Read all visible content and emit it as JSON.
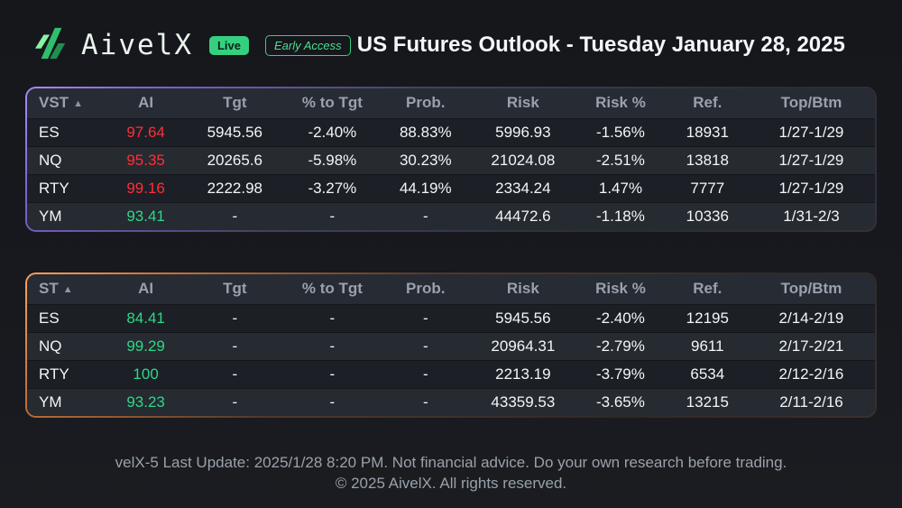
{
  "header": {
    "brand": "AivelX",
    "live_badge": "Live",
    "early_access_badge": "Early Access",
    "title": "US Futures Outlook - Tuesday January 28, 2025"
  },
  "colors": {
    "red": "#ff2e36",
    "green": "#2fd787",
    "brand_green": "#35d07f",
    "vst_accent": "#a98cff",
    "st_accent": "#ffa35f"
  },
  "tables": [
    {
      "name": "vst",
      "sort_icon": "▲",
      "columns": [
        "VST",
        "AI",
        "Tgt",
        "% to Tgt",
        "Prob.",
        "Risk",
        "Risk %",
        "Ref.",
        "Top/Btm"
      ],
      "col_keys": [
        "symbol",
        "ai",
        "tgt",
        "pct-to-tgt",
        "prob",
        "risk",
        "risk-pct",
        "ref",
        "top-btm"
      ],
      "rows": [
        {
          "cells": [
            "ES",
            "97.64",
            "5945.56",
            "-2.40%",
            "88.83%",
            "5996.93",
            "-1.56%",
            "18931",
            "1/27-1/29"
          ],
          "ai_color": "red"
        },
        {
          "cells": [
            "NQ",
            "95.35",
            "20265.6",
            "-5.98%",
            "30.23%",
            "21024.08",
            "-2.51%",
            "13818",
            "1/27-1/29"
          ],
          "ai_color": "red"
        },
        {
          "cells": [
            "RTY",
            "99.16",
            "2222.98",
            "-3.27%",
            "44.19%",
            "2334.24",
            "1.47%",
            "7777",
            "1/27-1/29"
          ],
          "ai_color": "red"
        },
        {
          "cells": [
            "YM",
            "93.41",
            "-",
            "-",
            "-",
            "44472.6",
            "-1.18%",
            "10336",
            "1/31-2/3"
          ],
          "ai_color": "green"
        }
      ]
    },
    {
      "name": "st",
      "sort_icon": "▲",
      "columns": [
        "ST",
        "AI",
        "Tgt",
        "% to Tgt",
        "Prob.",
        "Risk",
        "Risk %",
        "Ref.",
        "Top/Btm"
      ],
      "col_keys": [
        "symbol",
        "ai",
        "tgt",
        "pct-to-tgt",
        "prob",
        "risk",
        "risk-pct",
        "ref",
        "top-btm"
      ],
      "rows": [
        {
          "cells": [
            "ES",
            "84.41",
            "-",
            "-",
            "-",
            "5945.56",
            "-2.40%",
            "12195",
            "2/14-2/19"
          ],
          "ai_color": "green"
        },
        {
          "cells": [
            "NQ",
            "99.29",
            "-",
            "-",
            "-",
            "20964.31",
            "-2.79%",
            "9611",
            "2/17-2/21"
          ],
          "ai_color": "green"
        },
        {
          "cells": [
            "RTY",
            "100",
            "-",
            "-",
            "-",
            "2213.19",
            "-3.79%",
            "6534",
            "2/12-2/16"
          ],
          "ai_color": "green"
        },
        {
          "cells": [
            "YM",
            "93.23",
            "-",
            "-",
            "-",
            "43359.53",
            "-3.65%",
            "13215",
            "2/11-2/16"
          ],
          "ai_color": "green"
        }
      ]
    }
  ],
  "footer": {
    "line1": "velX-5 Last Update: 2025/1/28 8:20 PM. Not financial advice. Do your own research before trading.",
    "line2": "© 2025 AivelX. All rights reserved."
  }
}
